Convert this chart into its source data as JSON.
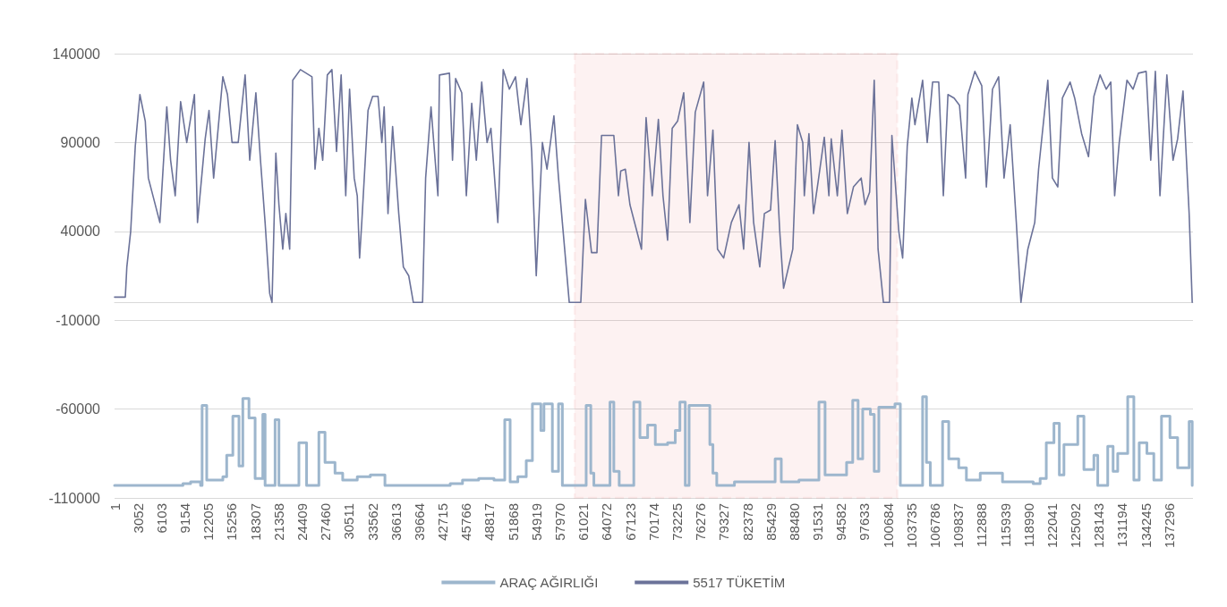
{
  "chart_data": {
    "type": "line",
    "legend": "bottom",
    "grid": "y",
    "xlim": [
      1,
      140400
    ],
    "xticks": [
      1,
      3052,
      6103,
      9154,
      12205,
      15256,
      18307,
      21358,
      24409,
      27460,
      30511,
      33562,
      36613,
      39664,
      42715,
      45766,
      48817,
      51868,
      54919,
      57970,
      61021,
      64072,
      67123,
      70174,
      73225,
      76276,
      79327,
      82378,
      85429,
      88480,
      91531,
      94582,
      97633,
      100684,
      103735,
      106786,
      109837,
      112888,
      115939,
      118990,
      122041,
      125092,
      128143,
      131194,
      134245,
      137296
    ],
    "ylim": [
      -110000,
      140000
    ],
    "yticks": [
      -110000,
      -60000,
      -10000,
      40000,
      90000,
      140000
    ],
    "bands": [
      {
        "axis": "x",
        "from": 59900,
        "to": 101900,
        "color": "#e02020"
      }
    ],
    "series": [
      {
        "name": "ARAÇ AĞIRLIĞI",
        "type": "step",
        "color": "#9db6cd",
        "x": [
          1,
          300,
          8900,
          9900,
          11200,
          11400,
          12000,
          12200,
          14100,
          14600,
          15400,
          16200,
          16700,
          17500,
          18300,
          19300,
          19600,
          20900,
          21400,
          24000,
          25000,
          26600,
          27400,
          28700,
          29700,
          31600,
          33300,
          35200,
          43700,
          45300,
          47400,
          49400,
          50800,
          51500,
          52500,
          53600,
          54400,
          55500,
          55900,
          57000,
          57800,
          58300,
          61400,
          62000,
          62400,
          64500,
          65000,
          65700,
          67600,
          68400,
          69400,
          70400,
          72000,
          73000,
          73600,
          74300,
          74800,
          76700,
          77500,
          77900,
          78400,
          80700,
          86000,
          86800,
          89100,
          91700,
          92500,
          95300,
          96100,
          96800,
          97400,
          98400,
          98900,
          99500,
          101600,
          102300,
          105200,
          105700,
          106200,
          107800,
          108600,
          109900,
          110900,
          112700,
          115600,
          119600,
          120500,
          121300,
          122300,
          123000,
          123600,
          124700,
          125400,
          126200,
          127500,
          128000,
          129300,
          130000,
          130600,
          131900,
          132700,
          133400,
          134400,
          135300,
          136300,
          137400,
          138400,
          139900,
          140300
        ],
        "values": [
          -103000,
          -103000,
          -102000,
          -101000,
          -103000,
          -58000,
          -100000,
          -100000,
          -98000,
          -86000,
          -64000,
          -92000,
          -54000,
          -65000,
          -99000,
          -63000,
          -103000,
          -66000,
          -103000,
          -79000,
          -103000,
          -73000,
          -90000,
          -96000,
          -100000,
          -98000,
          -97000,
          -103000,
          -102000,
          -100000,
          -99000,
          -100000,
          -66000,
          -101000,
          -98000,
          -89000,
          -57000,
          -72000,
          -57000,
          -95000,
          -57000,
          -103000,
          -58000,
          -96000,
          -103000,
          -56000,
          -95000,
          -103000,
          -56000,
          -76000,
          -69000,
          -80000,
          -79000,
          -72000,
          -56000,
          -103000,
          -58000,
          -58000,
          -80000,
          -96000,
          -103000,
          -101000,
          -88000,
          -101000,
          -100000,
          -56000,
          -97000,
          -90000,
          -55000,
          -88000,
          -60000,
          -63000,
          -95000,
          -59000,
          -57000,
          -103000,
          -53000,
          -90000,
          -103000,
          -67000,
          -88000,
          -93000,
          -100000,
          -96000,
          -101000,
          -102000,
          -99000,
          -79000,
          -68000,
          -97000,
          -80000,
          -80000,
          -64000,
          -94000,
          -86000,
          -103000,
          -81000,
          -95000,
          -85000,
          -53000,
          -100000,
          -79000,
          -85000,
          -100000,
          -64000,
          -76000,
          -93000,
          -67000,
          -103000
        ]
      },
      {
        "name": "5517 TÜKETİM",
        "color": "#6b7299",
        "x": [
          1,
          1400,
          1600,
          2100,
          2700,
          3300,
          4000,
          4400,
          5900,
          6800,
          7300,
          7900,
          8600,
          9400,
          10400,
          10800,
          11800,
          12300,
          12900,
          14100,
          14700,
          15300,
          16100,
          17000,
          17600,
          18400,
          19000,
          19600,
          20200,
          20500,
          21000,
          21400,
          21900,
          22300,
          22800,
          23200,
          24200,
          25700,
          26100,
          26600,
          27100,
          27700,
          28300,
          28900,
          29500,
          30100,
          30600,
          31200,
          31600,
          31900,
          32200,
          33000,
          33600,
          34300,
          34800,
          35100,
          35600,
          36200,
          37000,
          37600,
          38300,
          38900,
          40100,
          40500,
          41200,
          42100,
          42300,
          43600,
          44000,
          44400,
          45200,
          45800,
          46500,
          47100,
          47800,
          48500,
          49000,
          49900,
          50600,
          51400,
          52200,
          52900,
          53700,
          54300,
          54900,
          55700,
          56300,
          57200,
          57800,
          58600,
          59200,
          60700,
          61300,
          62100,
          62800,
          63400,
          65000,
          65600,
          65900,
          66500,
          67100,
          68000,
          68600,
          69200,
          70000,
          70800,
          71400,
          72000,
          72600,
          73300,
          74100,
          74900,
          75600,
          76700,
          77200,
          77900,
          78500,
          79300,
          80300,
          81300,
          81900,
          82600,
          83200,
          84000,
          84600,
          85400,
          86000,
          86600,
          87100,
          88300,
          88900,
          89600,
          89800,
          90400,
          91000,
          91600,
          92400,
          93000,
          93300,
          94100,
          94700,
          95400,
          96200,
          97200,
          97700,
          98300,
          98900,
          99400,
          100100,
          100900,
          101200,
          102100,
          102600,
          103200,
          103800,
          104200,
          105200,
          105800,
          106500,
          107300,
          107900,
          108500,
          109300,
          110000,
          110800,
          111100,
          112000,
          112900,
          113500,
          114300,
          115100,
          115800,
          116600,
          117400,
          118000,
          118900,
          119800,
          120300,
          121500,
          122100,
          122800,
          123400,
          124400,
          125000,
          125900,
          126800,
          127500,
          128300,
          129100,
          129700,
          130200,
          130800,
          131800,
          132600,
          133300,
          134300,
          134900,
          135500,
          136100,
          137000,
          137800,
          138400,
          139100,
          139900,
          140300
        ],
        "values": [
          3000,
          3000,
          20000,
          40000,
          88000,
          117000,
          102000,
          70000,
          45000,
          110000,
          80000,
          60000,
          113000,
          90000,
          117000,
          45000,
          92000,
          108000,
          70000,
          127000,
          117000,
          90000,
          90000,
          128000,
          80000,
          118000,
          80000,
          45000,
          5000,
          0,
          84000,
          55000,
          30000,
          50000,
          30000,
          125000,
          131000,
          127000,
          75000,
          98000,
          80000,
          128000,
          131000,
          85000,
          128000,
          60000,
          120000,
          70000,
          60000,
          25000,
          46000,
          108000,
          116000,
          116000,
          90000,
          110000,
          50000,
          99000,
          50000,
          20000,
          15000,
          0,
          0,
          70000,
          110000,
          60000,
          128000,
          129000,
          80000,
          126000,
          118000,
          60000,
          112000,
          80000,
          124000,
          90000,
          98000,
          45000,
          131000,
          120000,
          127000,
          100000,
          126000,
          85000,
          15000,
          90000,
          75000,
          105000,
          70000,
          30000,
          0,
          0,
          58000,
          28000,
          28000,
          94000,
          94000,
          60000,
          74000,
          75000,
          55000,
          40000,
          30000,
          104000,
          60000,
          103000,
          60000,
          35000,
          98000,
          102000,
          118000,
          45000,
          107000,
          124000,
          60000,
          97000,
          30000,
          25000,
          45000,
          55000,
          30000,
          90000,
          45000,
          20000,
          50000,
          52000,
          91000,
          40000,
          8000,
          30000,
          100000,
          90000,
          60000,
          95000,
          50000,
          68000,
          93000,
          60000,
          92000,
          60000,
          97000,
          50000,
          65000,
          70000,
          55000,
          62000,
          125000,
          30000,
          0,
          0,
          94000,
          40000,
          25000,
          88000,
          115000,
          100000,
          125000,
          90000,
          124000,
          124000,
          60000,
          117000,
          115000,
          111000,
          70000,
          117000,
          130000,
          122000,
          65000,
          120000,
          127000,
          70000,
          100000,
          45000,
          0,
          30000,
          45000,
          75000,
          125000,
          70000,
          65000,
          115000,
          124000,
          115000,
          95000,
          82000,
          116000,
          128000,
          120000,
          124000,
          60000,
          90000,
          125000,
          120000,
          129000,
          130000,
          80000,
          130000,
          60000,
          128000,
          80000,
          92000,
          119000,
          50000,
          0
        ]
      }
    ]
  }
}
